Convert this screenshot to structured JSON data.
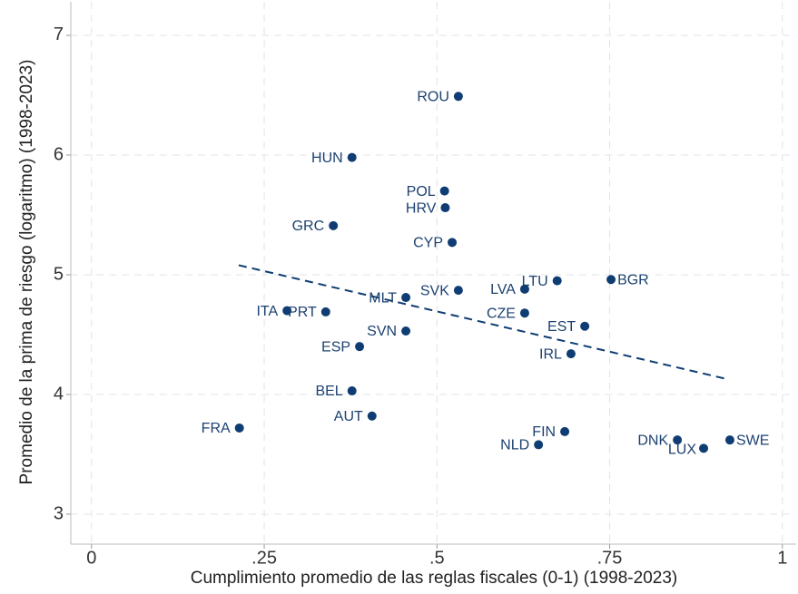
{
  "chart_data": {
    "type": "scatter",
    "x_label": "Cumplimiento promedio de las reglas fiscales (0-1) (1998-2023)",
    "y_label": "Promedio de la prima de riesgo (logaritmo) (1998-2023)",
    "labels": [
      "ROU",
      "HUN",
      "POL",
      "HRV",
      "GRC",
      "CYP",
      "LTU",
      "BGR",
      "SVK",
      "LVA",
      "MLT",
      "ITA",
      "PRT",
      "CZE",
      "EST",
      "SVN",
      "ESP",
      "IRL",
      "BEL",
      "AUT",
      "FRA",
      "FIN",
      "NLD",
      "DNK",
      "SWE",
      "LUX"
    ],
    "x": [
      0.531,
      0.377,
      0.511,
      0.512,
      0.35,
      0.522,
      0.674,
      0.752,
      0.531,
      0.627,
      0.455,
      0.283,
      0.339,
      0.627,
      0.714,
      0.455,
      0.388,
      0.694,
      0.377,
      0.406,
      0.214,
      0.685,
      0.647,
      0.848,
      0.924,
      0.886
    ],
    "y": [
      6.49,
      5.98,
      5.7,
      5.56,
      5.41,
      5.27,
      4.95,
      4.96,
      4.87,
      4.88,
      4.81,
      4.7,
      4.69,
      4.68,
      4.57,
      4.53,
      4.4,
      4.34,
      4.03,
      3.82,
      3.72,
      3.69,
      3.58,
      3.62,
      3.62,
      3.55
    ],
    "color": "#0f3d73",
    "fit_line": {
      "x": [
        0.213,
        0.919
      ],
      "y": [
        5.08,
        4.13
      ]
    },
    "xlim": [
      -0.03,
      1.02
    ],
    "ylim": [
      2.75,
      7.28
    ],
    "xticks": [
      0,
      {
        "value": 0.25,
        "label": ".25"
      },
      {
        "value": 0.5,
        "label": ".5"
      },
      {
        "value": 0.75,
        "label": ".75"
      },
      1
    ],
    "yticks": [
      3,
      4,
      5,
      6,
      7
    ],
    "grid": true
  }
}
